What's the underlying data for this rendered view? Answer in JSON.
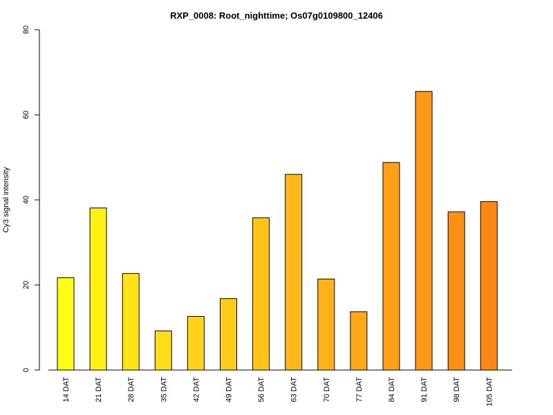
{
  "chart_data": {
    "type": "bar",
    "title": "RXP_0008: Root_nighttime; Os07g0109800_12406",
    "xlabel": "",
    "ylabel": "Cy3 signal intensity",
    "ylim": [
      0,
      80
    ],
    "yticks": [
      0,
      20,
      40,
      60,
      80
    ],
    "categories": [
      "14 DAT",
      "21 DAT",
      "28 DAT",
      "35 DAT",
      "42 DAT",
      "49 DAT",
      "56 DAT",
      "63 DAT",
      "70 DAT",
      "77 DAT",
      "84 DAT",
      "91 DAT",
      "98 DAT",
      "105 DAT"
    ],
    "values": [
      21.7,
      38.1,
      22.7,
      9.2,
      12.6,
      16.8,
      35.8,
      46.0,
      21.4,
      13.7,
      48.8,
      65.5,
      37.2,
      39.6
    ],
    "colors": [
      "#FFFF15",
      "#FFF015",
      "#FFE415",
      "#FFDC18",
      "#FFD319",
      "#FFCB19",
      "#FFC319",
      "#FFBA19",
      "#FFB219",
      "#FFA919",
      "#FFA019",
      "#FF9819",
      "#FF9015",
      "#FF8715"
    ],
    "grid": false,
    "legend": "none"
  }
}
